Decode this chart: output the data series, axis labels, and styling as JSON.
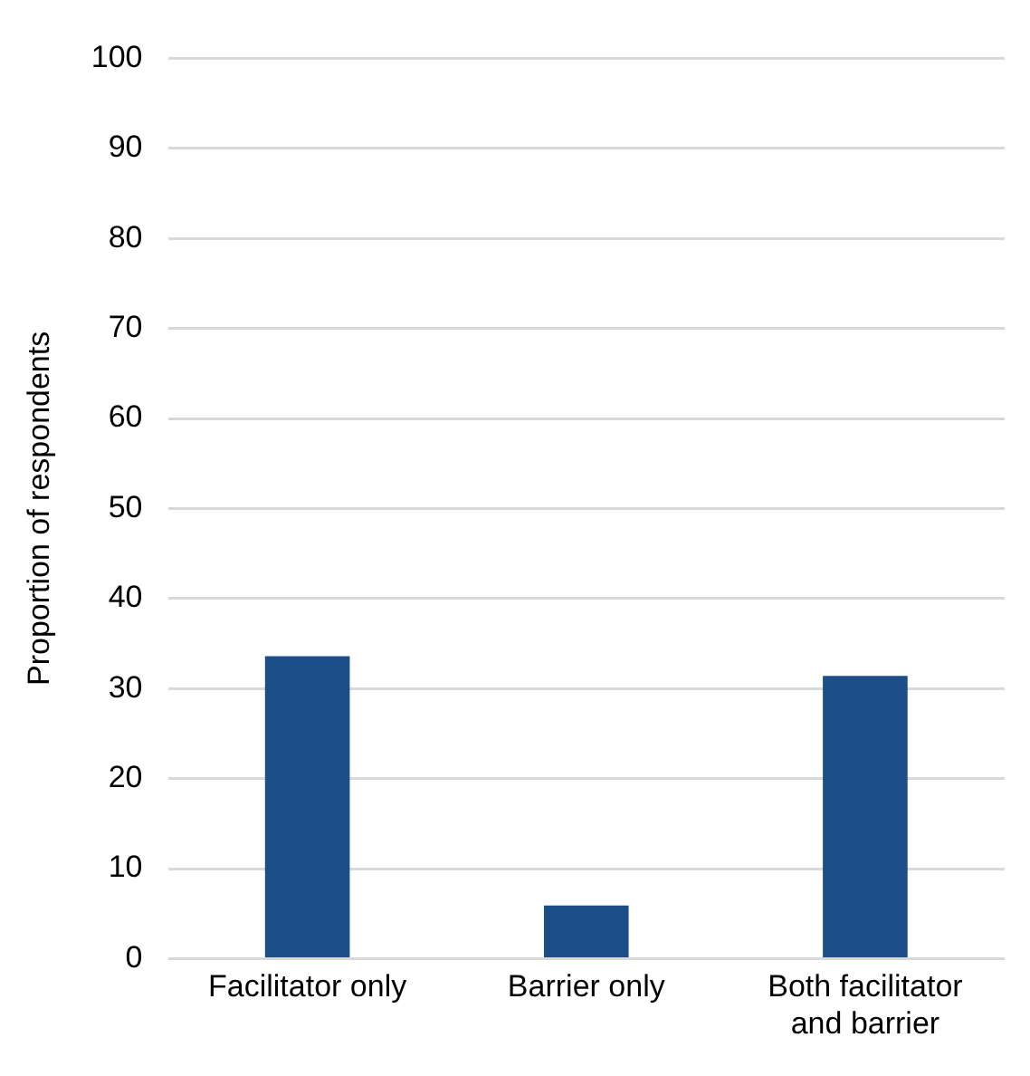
{
  "chart_data": {
    "type": "bar",
    "ylabel": "Proportion of respondents",
    "categories": [
      "Facilitator only",
      "Barrier only",
      "Both facilitator and barrier"
    ],
    "values": [
      33.6,
      5.9,
      31.4
    ],
    "color": "#1c4e87",
    "ylim": [
      0,
      100
    ],
    "yticks": [
      0,
      10,
      20,
      30,
      40,
      50,
      60,
      70,
      80,
      90,
      100
    ],
    "grid": "y"
  }
}
